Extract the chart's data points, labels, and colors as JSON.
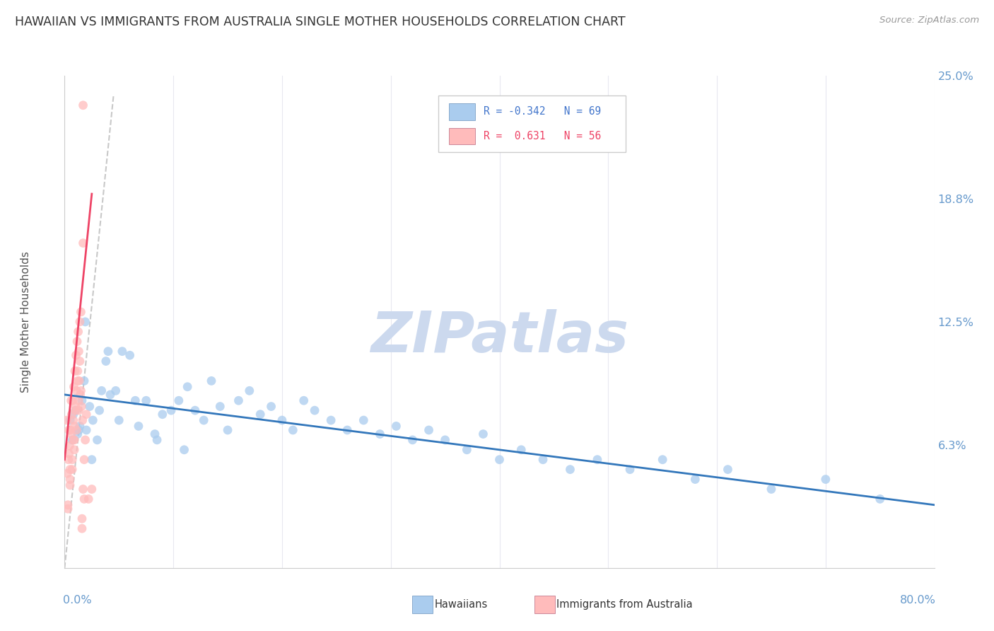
{
  "title": "HAWAIIAN VS IMMIGRANTS FROM AUSTRALIA SINGLE MOTHER HOUSEHOLDS CORRELATION CHART",
  "source_text": "Source: ZipAtlas.com",
  "ylabel": "Single Mother Households",
  "xlim": [
    0,
    80
  ],
  "ylim": [
    0,
    25
  ],
  "background_color": "#ffffff",
  "watermark_text": "ZIPatlas",
  "watermark_color": "#ccd9ee",
  "blue_color": "#aaccee",
  "pink_color": "#ffbbbb",
  "trend_blue_color": "#3377bb",
  "trend_pink_color": "#ee4466",
  "ref_line_color": "#bbbbbb",
  "grid_color": "#e8e8f0",
  "axis_label_color": "#6699cc",
  "title_color": "#333333",
  "source_color": "#999999",
  "ylabel_color": "#555555",
  "legend_blue_text_color": "#4477cc",
  "legend_pink_text_color": "#ee4466",
  "ytick_vals": [
    0,
    6.25,
    12.5,
    18.75,
    25.0
  ],
  "ytick_labels": [
    "",
    "6.3%",
    "12.5%",
    "18.8%",
    "25.0%"
  ],
  "hawaiians_x": [
    0.5,
    0.8,
    1.0,
    1.2,
    1.4,
    1.6,
    1.8,
    2.0,
    2.3,
    2.6,
    3.0,
    3.4,
    3.8,
    4.2,
    4.7,
    5.3,
    6.0,
    6.8,
    7.5,
    8.3,
    9.0,
    9.8,
    10.5,
    11.3,
    12.0,
    12.8,
    13.5,
    14.3,
    15.0,
    16.0,
    17.0,
    18.0,
    19.0,
    20.0,
    21.0,
    22.0,
    23.0,
    24.5,
    26.0,
    27.5,
    29.0,
    30.5,
    32.0,
    33.5,
    35.0,
    37.0,
    38.5,
    40.0,
    42.0,
    44.0,
    46.5,
    49.0,
    52.0,
    55.0,
    58.0,
    61.0,
    65.0,
    70.0,
    75.0,
    0.7,
    1.3,
    1.9,
    2.5,
    3.2,
    4.0,
    5.0,
    6.5,
    8.5,
    11.0
  ],
  "hawaiians_y": [
    7.5,
    7.8,
    8.0,
    6.8,
    7.2,
    8.5,
    9.5,
    7.0,
    8.2,
    7.5,
    6.5,
    9.0,
    10.5,
    8.8,
    9.0,
    11.0,
    10.8,
    7.2,
    8.5,
    6.8,
    7.8,
    8.0,
    8.5,
    9.2,
    8.0,
    7.5,
    9.5,
    8.2,
    7.0,
    8.5,
    9.0,
    7.8,
    8.2,
    7.5,
    7.0,
    8.5,
    8.0,
    7.5,
    7.0,
    7.5,
    6.8,
    7.2,
    6.5,
    7.0,
    6.5,
    6.0,
    6.8,
    5.5,
    6.0,
    5.5,
    5.0,
    5.5,
    5.0,
    5.5,
    4.5,
    5.0,
    4.0,
    4.5,
    3.5,
    6.5,
    7.0,
    12.5,
    5.5,
    8.0,
    11.0,
    7.5,
    8.5,
    6.5,
    6.0
  ],
  "australia_x": [
    0.2,
    0.3,
    0.4,
    0.5,
    0.6,
    0.7,
    0.8,
    0.9,
    1.0,
    1.1,
    1.2,
    1.3,
    1.4,
    1.5,
    1.6,
    1.7,
    1.8,
    1.9,
    2.0,
    2.2,
    2.5,
    0.25,
    0.35,
    0.45,
    0.55,
    0.65,
    0.75,
    0.85,
    0.95,
    1.05,
    1.15,
    1.25,
    1.35,
    1.45,
    1.55,
    1.65,
    0.3,
    0.5,
    0.7,
    0.9,
    1.1,
    1.3,
    1.5,
    1.7,
    0.4,
    0.6,
    0.8,
    1.0,
    1.2,
    1.4,
    1.6,
    1.8,
    0.5,
    0.9,
    1.3,
    1.7
  ],
  "australia_y": [
    7.5,
    3.0,
    7.0,
    4.5,
    8.5,
    5.5,
    6.5,
    7.2,
    8.0,
    9.0,
    10.0,
    11.0,
    12.5,
    13.0,
    2.5,
    4.0,
    5.5,
    6.5,
    7.8,
    3.5,
    4.0,
    4.8,
    5.5,
    6.2,
    7.0,
    7.8,
    8.5,
    9.2,
    10.0,
    10.8,
    11.5,
    12.0,
    9.5,
    8.8,
    8.2,
    7.5,
    3.2,
    4.2,
    5.0,
    6.0,
    7.0,
    8.0,
    9.0,
    16.5,
    5.8,
    6.8,
    7.5,
    8.2,
    9.5,
    10.5,
    2.0,
    3.5,
    5.0,
    6.5,
    8.5,
    23.5
  ],
  "blue_trend_x0": 0,
  "blue_trend_x1": 80,
  "blue_trend_y0": 8.8,
  "blue_trend_y1": 3.2,
  "pink_trend_x0": 0,
  "pink_trend_x1": 2.5,
  "pink_trend_y0": 5.5,
  "pink_trend_y1": 19.0,
  "ref_x0": 0,
  "ref_x1": 4.5,
  "ref_y0": 0,
  "ref_y1": 24.0
}
